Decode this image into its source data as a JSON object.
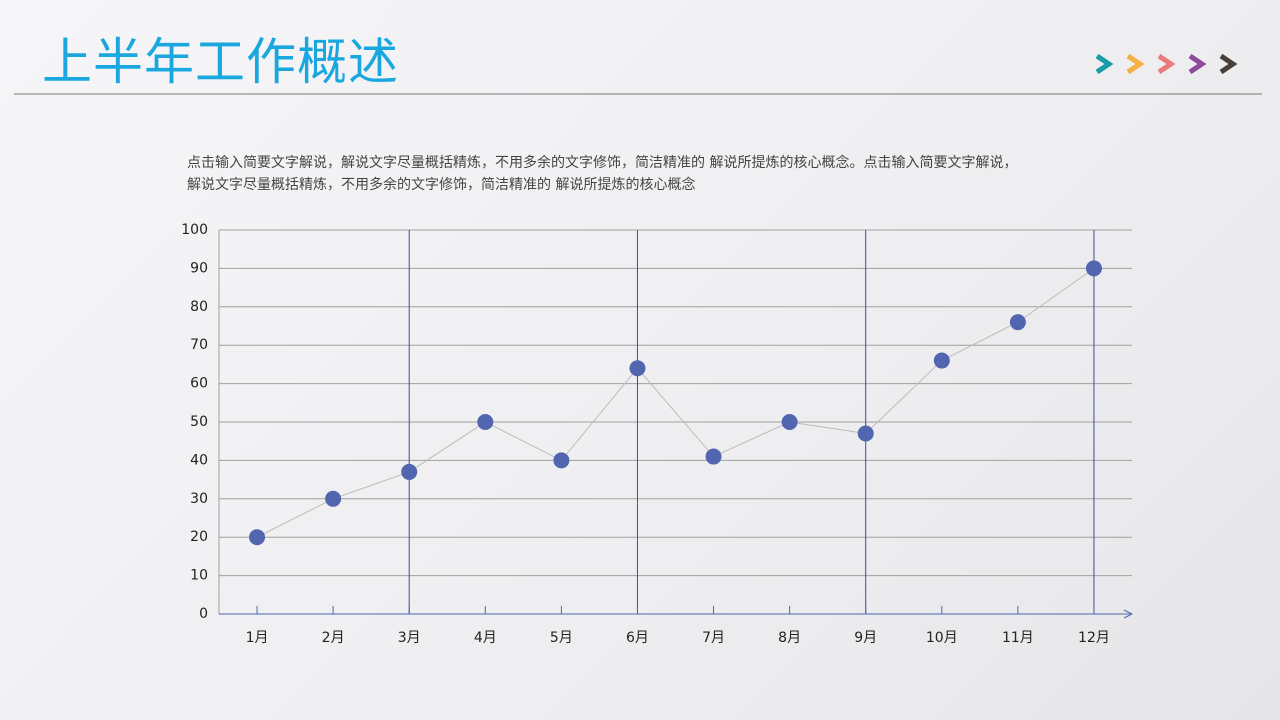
{
  "header": {
    "title": "上半年工作概述"
  },
  "description": [
    "点击输入简要文字解说，解说文字尽量概括精炼，不用多余的文字修饰，简洁精准的  解说所提炼的核心概念。点击输入简要文字解说，",
    "解说文字尽量概括精炼，不用多余的文字修饰，简洁精准的 解说所提炼的核心概念"
  ],
  "chart_data": {
    "type": "line",
    "categories": [
      "1月",
      "2月",
      "3月",
      "4月",
      "5月",
      "6月",
      "7月",
      "8月",
      "9月",
      "10月",
      "11月",
      "12月"
    ],
    "values": [
      20,
      30,
      37,
      50,
      40,
      64,
      41,
      50,
      47,
      66,
      76,
      90
    ],
    "color": "#5266b0",
    "line_color": "#bbbbbb",
    "ylim": [
      0,
      100
    ],
    "yticks": [
      0,
      10,
      20,
      30,
      40,
      50,
      60,
      70,
      80,
      90,
      100
    ],
    "grid": true,
    "xgrid_interval": 3
  }
}
